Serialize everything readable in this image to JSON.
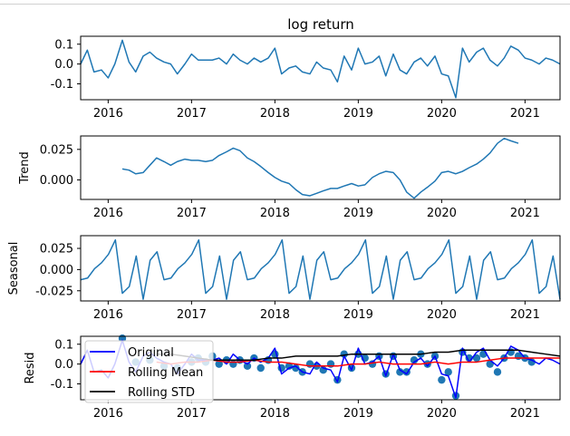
{
  "chart_data": [
    {
      "type": "line",
      "title": "log return",
      "ylabel": "",
      "xlim": [
        2015.67,
        2021.42
      ],
      "ylim": [
        -0.18,
        0.14
      ],
      "yticks": [
        "0.1",
        "0.0",
        "-0.1"
      ],
      "ytick_values": [
        0.1,
        0.0,
        -0.1
      ],
      "xticks": [
        "2016",
        "2017",
        "2018",
        "2019",
        "2020",
        "2021"
      ],
      "xtick_values": [
        2016,
        2017,
        2018,
        2019,
        2020,
        2021
      ],
      "color": "#1f77b4",
      "series": [
        {
          "x": [
            2015.67,
            2015.75,
            2015.83,
            2015.92,
            2016.0,
            2016.08,
            2016.17,
            2016.25,
            2016.33,
            2016.42,
            2016.5,
            2016.58,
            2016.67,
            2016.75,
            2016.83,
            2016.92,
            2017.0,
            2017.08,
            2017.17,
            2017.25,
            2017.33,
            2017.42,
            2017.5,
            2017.58,
            2017.67,
            2017.75,
            2017.83,
            2017.92,
            2018.0,
            2018.08,
            2018.17,
            2018.25,
            2018.33,
            2018.42,
            2018.5,
            2018.58,
            2018.67,
            2018.75,
            2018.83,
            2018.92,
            2019.0,
            2019.08,
            2019.17,
            2019.25,
            2019.33,
            2019.42,
            2019.5,
            2019.58,
            2019.67,
            2019.75,
            2019.83,
            2019.92,
            2020.0,
            2020.08,
            2020.17,
            2020.25,
            2020.33,
            2020.42,
            2020.5,
            2020.58,
            2020.67,
            2020.75,
            2020.83,
            2020.92,
            2021.0,
            2021.08,
            2021.17,
            2021.25,
            2021.33,
            2021.42
          ],
          "values": [
            0.0,
            0.07,
            -0.04,
            -0.03,
            -0.07,
            0.0,
            0.12,
            0.01,
            -0.04,
            0.04,
            0.06,
            0.03,
            0.01,
            0.0,
            -0.05,
            0.0,
            0.05,
            0.02,
            0.02,
            0.02,
            0.03,
            0.0,
            0.05,
            0.02,
            0.0,
            0.03,
            0.01,
            0.03,
            0.08,
            -0.05,
            -0.02,
            -0.01,
            -0.04,
            -0.05,
            0.01,
            -0.02,
            -0.03,
            -0.09,
            0.04,
            -0.03,
            0.08,
            0.0,
            0.01,
            0.04,
            -0.06,
            0.05,
            -0.03,
            -0.05,
            0.01,
            0.03,
            -0.01,
            0.04,
            -0.05,
            -0.06,
            -0.17,
            0.08,
            0.01,
            0.06,
            0.08,
            0.02,
            -0.01,
            0.03,
            0.09,
            0.07,
            0.03,
            0.02,
            0.0,
            0.03,
            0.02,
            0.0
          ]
        }
      ]
    },
    {
      "type": "line",
      "title": "",
      "ylabel": "Trend",
      "xlim": [
        2015.67,
        2021.42
      ],
      "ylim": [
        -0.016,
        0.036
      ],
      "yticks": [
        "0.025",
        "0.000"
      ],
      "ytick_values": [
        0.025,
        0.0
      ],
      "xticks": [
        "2016",
        "2017",
        "2018",
        "2019",
        "2020",
        "2021"
      ],
      "xtick_values": [
        2016,
        2017,
        2018,
        2019,
        2020,
        2021
      ],
      "color": "#1f77b4",
      "series": [
        {
          "x": [
            2016.17,
            2016.25,
            2016.33,
            2016.42,
            2016.5,
            2016.58,
            2016.67,
            2016.75,
            2016.83,
            2016.92,
            2017.0,
            2017.08,
            2017.17,
            2017.25,
            2017.33,
            2017.42,
            2017.5,
            2017.58,
            2017.67,
            2017.75,
            2017.83,
            2017.92,
            2018.0,
            2018.08,
            2018.17,
            2018.25,
            2018.33,
            2018.42,
            2018.5,
            2018.58,
            2018.67,
            2018.75,
            2018.83,
            2018.92,
            2019.0,
            2019.08,
            2019.17,
            2019.25,
            2019.33,
            2019.42,
            2019.5,
            2019.58,
            2019.67,
            2019.75,
            2019.83,
            2019.92,
            2020.0,
            2020.08,
            2020.17,
            2020.25,
            2020.33,
            2020.42,
            2020.5,
            2020.58,
            2020.67,
            2020.75,
            2020.83,
            2020.92
          ],
          "values": [
            0.009,
            0.008,
            0.005,
            0.006,
            0.012,
            0.018,
            0.015,
            0.012,
            0.015,
            0.017,
            0.016,
            0.016,
            0.015,
            0.016,
            0.02,
            0.023,
            0.026,
            0.024,
            0.018,
            0.015,
            0.011,
            0.006,
            0.002,
            -0.001,
            -0.003,
            -0.008,
            -0.012,
            -0.013,
            -0.011,
            -0.009,
            -0.007,
            -0.007,
            -0.005,
            -0.003,
            -0.005,
            -0.004,
            0.002,
            0.005,
            0.007,
            0.006,
            0.0,
            -0.01,
            -0.015,
            -0.01,
            -0.006,
            -0.001,
            0.006,
            0.007,
            0.005,
            0.007,
            0.01,
            0.013,
            0.017,
            0.022,
            0.03,
            0.034,
            0.032,
            0.03
          ]
        }
      ]
    },
    {
      "type": "line",
      "title": "",
      "ylabel": "Seasonal",
      "xlim": [
        2015.67,
        2021.42
      ],
      "ylim": [
        -0.037,
        0.04
      ],
      "yticks": [
        "0.025",
        "0.000",
        "-0.025"
      ],
      "ytick_values": [
        0.025,
        0.0,
        -0.025
      ],
      "xticks": [
        "2016",
        "2017",
        "2018",
        "2019",
        "2020",
        "2021"
      ],
      "xtick_values": [
        2016,
        2017,
        2018,
        2019,
        2020,
        2021
      ],
      "color": "#1f77b4",
      "series": [
        {
          "pattern": [
            -0.012,
            -0.01,
            0.001,
            0.008,
            0.018,
            0.035,
            -0.028,
            -0.02,
            0.016,
            -0.035,
            0.011,
            0.021
          ],
          "pattern_start": 2015.67,
          "x_end": 2021.42
        }
      ]
    },
    {
      "type": "line",
      "title": "",
      "ylabel": "Resid",
      "xlim": [
        2015.67,
        2021.42
      ],
      "ylim": [
        -0.18,
        0.14
      ],
      "yticks": [
        "0.1",
        "0.0",
        "-0.1"
      ],
      "ytick_values": [
        0.1,
        0.0,
        -0.1
      ],
      "xticks": [
        "2016",
        "2017",
        "2018",
        "2019",
        "2020",
        "2021"
      ],
      "xtick_values": [
        2016,
        2017,
        2018,
        2019,
        2020,
        2021
      ],
      "legend": {
        "position": "upper-left",
        "entries": [
          {
            "label": "Original",
            "color": "#0000ff"
          },
          {
            "label": "Rolling Mean",
            "color": "#ff0000"
          },
          {
            "label": "Rolling STD",
            "color": "#000000"
          }
        ]
      },
      "scatter_color": "#1f77b4",
      "series": [
        {
          "name": "Original",
          "color": "#0000ff",
          "source": "log return"
        },
        {
          "name": "Rolling Mean",
          "color": "#ff0000",
          "x": [
            2016.58,
            2016.75,
            2016.92,
            2017.08,
            2017.25,
            2017.42,
            2017.58,
            2017.75,
            2017.92,
            2018.08,
            2018.25,
            2018.42,
            2018.58,
            2018.75,
            2018.92,
            2019.08,
            2019.25,
            2019.42,
            2019.58,
            2019.75,
            2019.92,
            2020.08,
            2020.25,
            2020.42,
            2020.58,
            2020.75,
            2020.92,
            2021.08,
            2021.25,
            2021.42
          ],
          "values": [
            0.01,
            0.0,
            0.01,
            0.01,
            0.02,
            0.01,
            0.01,
            0.02,
            0.01,
            0.01,
            0.0,
            -0.01,
            -0.01,
            -0.01,
            0.0,
            0.0,
            0.01,
            0.0,
            0.0,
            0.0,
            0.01,
            0.0,
            0.01,
            0.01,
            0.02,
            0.03,
            0.03,
            0.03,
            0.03,
            0.03
          ]
        },
        {
          "name": "Rolling STD",
          "color": "#000000",
          "x": [
            2016.58,
            2016.75,
            2016.92,
            2017.08,
            2017.25,
            2017.42,
            2017.58,
            2017.75,
            2017.92,
            2018.08,
            2018.25,
            2018.42,
            2018.58,
            2018.75,
            2018.92,
            2019.08,
            2019.25,
            2019.42,
            2019.58,
            2019.75,
            2019.92,
            2020.08,
            2020.25,
            2020.42,
            2020.58,
            2020.75,
            2020.92,
            2021.08,
            2021.25,
            2021.42
          ],
          "values": [
            0.05,
            0.05,
            0.04,
            0.03,
            0.02,
            0.02,
            0.02,
            0.02,
            0.03,
            0.03,
            0.04,
            0.04,
            0.04,
            0.04,
            0.05,
            0.05,
            0.05,
            0.05,
            0.05,
            0.05,
            0.06,
            0.06,
            0.07,
            0.07,
            0.07,
            0.07,
            0.07,
            0.06,
            0.05,
            0.04
          ]
        },
        {
          "name": "Resid",
          "kind": "scatter",
          "x": [
            2016.17,
            2016.33,
            2016.5,
            2016.67,
            2016.83,
            2017.0,
            2017.08,
            2017.17,
            2017.25,
            2017.33,
            2017.42,
            2017.5,
            2017.58,
            2017.67,
            2017.75,
            2017.83,
            2017.92,
            2018.0,
            2018.08,
            2018.17,
            2018.25,
            2018.33,
            2018.42,
            2018.5,
            2018.58,
            2018.67,
            2018.75,
            2018.83,
            2018.92,
            2019.0,
            2019.08,
            2019.17,
            2019.25,
            2019.33,
            2019.42,
            2019.5,
            2019.58,
            2019.67,
            2019.75,
            2019.83,
            2019.92,
            2020.0,
            2020.08,
            2020.17,
            2020.25,
            2020.33,
            2020.42,
            2020.5,
            2020.58,
            2020.67,
            2020.75,
            2020.83,
            2020.92,
            2021.0,
            2021.08
          ],
          "values": [
            0.13,
            0.01,
            0.02,
            -0.01,
            -0.02,
            0.01,
            0.03,
            0.01,
            0.04,
            0.0,
            0.02,
            0.0,
            0.02,
            -0.01,
            0.03,
            -0.02,
            0.02,
            0.05,
            -0.02,
            -0.01,
            -0.02,
            -0.04,
            0.0,
            -0.01,
            -0.03,
            0.0,
            -0.08,
            0.05,
            -0.02,
            0.05,
            0.03,
            0.0,
            0.04,
            -0.05,
            0.04,
            -0.04,
            -0.04,
            0.02,
            0.05,
            0.0,
            0.04,
            -0.08,
            -0.04,
            -0.16,
            0.06,
            0.03,
            0.03,
            0.05,
            0.0,
            -0.04,
            0.03,
            0.06,
            0.04,
            0.03,
            0.01
          ]
        }
      ]
    }
  ]
}
